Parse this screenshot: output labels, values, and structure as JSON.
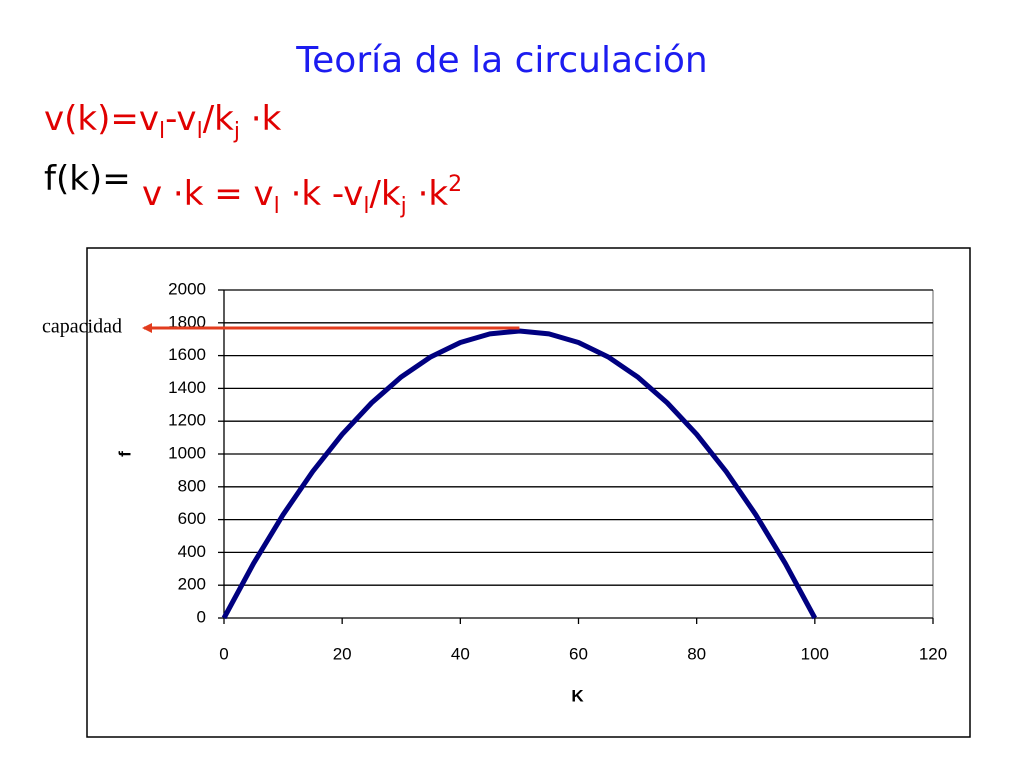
{
  "chart_data": {
    "type": "line",
    "title": "Teoría de la circulación",
    "formula_1": [
      "v(k)=v",
      "l",
      "-v",
      "l",
      "/k",
      "j",
      " ·k"
    ],
    "formula_2_label": "f(k)=",
    "formula_2": [
      "v ·k  = v",
      "l",
      " ·k -v",
      "l",
      "/k",
      "j",
      " ·k",
      "2"
    ],
    "annotation": "capacidad",
    "x_label": "K",
    "y_label": "f",
    "x": [
      0,
      5,
      10,
      15,
      20,
      25,
      30,
      35,
      40,
      45,
      50,
      55,
      60,
      65,
      70,
      75,
      80,
      85,
      90,
      95,
      100
    ],
    "values": [
      0,
      332.5,
      630,
      892.5,
      1120,
      1312.5,
      1470,
      1592.5,
      1680,
      1732.5,
      1750,
      1732.5,
      1680,
      1592.5,
      1470,
      1312.5,
      1120,
      892.5,
      630,
      332.5,
      0
    ],
    "color": "#000080",
    "xlim": [
      0,
      120
    ],
    "xticks": [
      0,
      20,
      40,
      60,
      80,
      100,
      120
    ],
    "ylim": [
      0,
      2000
    ],
    "yticks": [
      0,
      200,
      400,
      600,
      800,
      1000,
      1200,
      1400,
      1600,
      1800,
      2000
    ],
    "grid": true
  }
}
